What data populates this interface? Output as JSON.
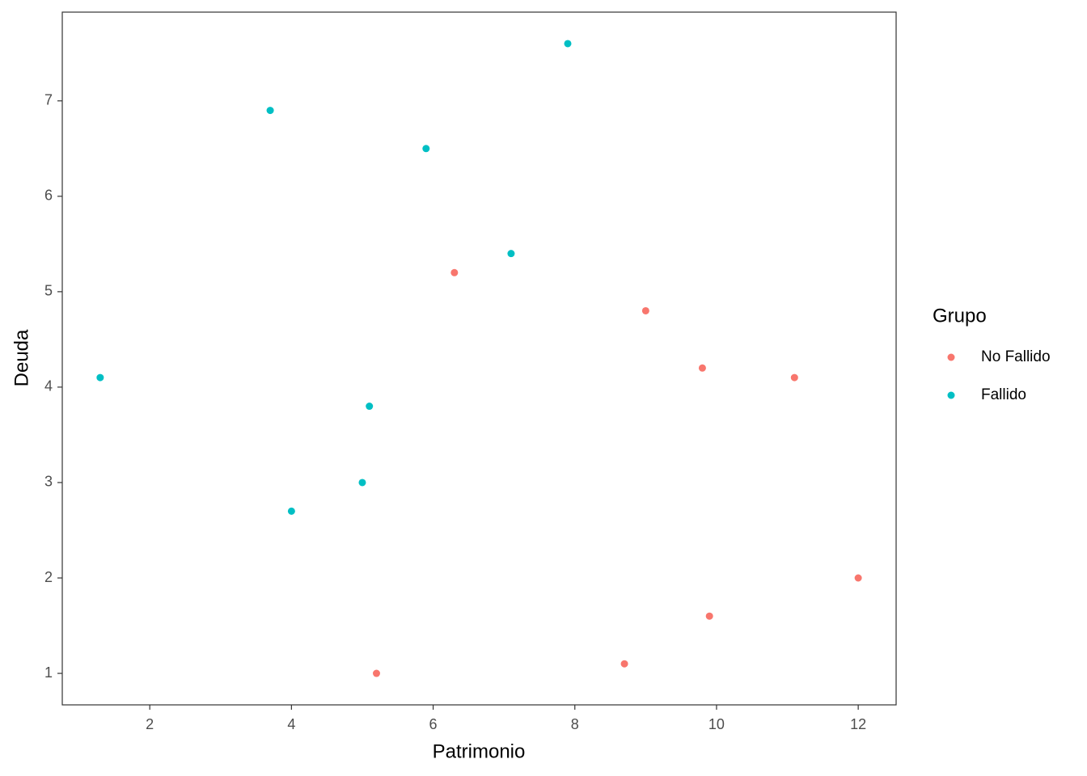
{
  "chart_data": {
    "type": "scatter",
    "x_label": "Patrimonio",
    "y_label": "Deuda",
    "legend_title": "Grupo",
    "xlim": [
      0.765,
      12.535
    ],
    "xticks": [
      2,
      4,
      6,
      8,
      10,
      12
    ],
    "ylim": [
      0.67,
      7.93
    ],
    "yticks": [
      1,
      2,
      3,
      4,
      5,
      6,
      7
    ],
    "grid": false,
    "legend_position": "right",
    "series": [
      {
        "name": "No Fallido",
        "color": "#F8766D",
        "x": [
          6.3,
          9.0,
          9.8,
          11.1,
          12.0,
          9.9,
          8.7,
          5.2
        ],
        "values": [
          5.2,
          4.8,
          4.2,
          4.1,
          2.0,
          1.6,
          1.1,
          1.0
        ]
      },
      {
        "name": "Fallido",
        "color": "#00BFC4",
        "x": [
          7.9,
          3.7,
          5.9,
          7.1,
          1.3,
          5.1,
          5.0,
          4.0
        ],
        "values": [
          7.6,
          6.9,
          6.5,
          5.4,
          4.1,
          3.8,
          3.0,
          2.7
        ]
      }
    ]
  }
}
